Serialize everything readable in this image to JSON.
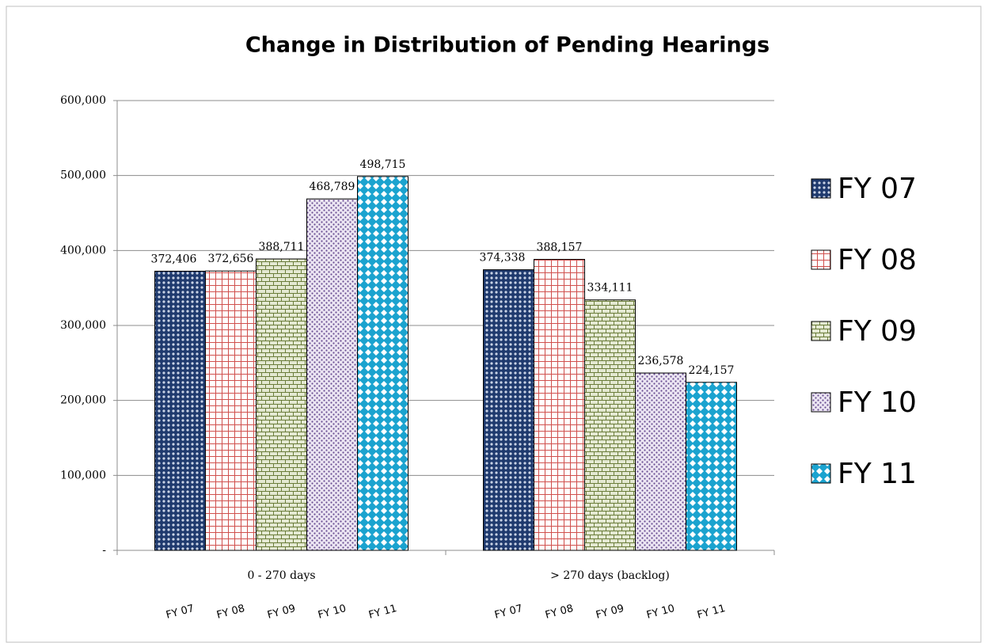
{
  "chart_data": {
    "type": "bar",
    "title": "Change in Distribution of Pending Hearings",
    "categories": [
      "0 - 270 days",
      "> 270 days (backlog)"
    ],
    "bar_labels": [
      "FY 07",
      "FY 08",
      "FY 09",
      "FY 10",
      "FY 11"
    ],
    "series": [
      {
        "name": "FY 07",
        "color": "#1f3a6e",
        "values": [
          372406,
          374338
        ],
        "value_labels": [
          "372,406",
          "374,338"
        ]
      },
      {
        "name": "FY 08",
        "color": "#d0504d",
        "values": [
          372656,
          388157
        ],
        "value_labels": [
          "372,656",
          "388,157"
        ]
      },
      {
        "name": "FY 09",
        "color": "#6b7d3a",
        "values": [
          388711,
          334111
        ],
        "value_labels": [
          "388,711",
          "334,111"
        ]
      },
      {
        "name": "FY 10",
        "color": "#6a4e92",
        "values": [
          468789,
          236578
        ],
        "value_labels": [
          "468,789",
          "236,578"
        ]
      },
      {
        "name": "FY 11",
        "color": "#1ba3cf",
        "values": [
          498715,
          224157
        ],
        "value_labels": [
          "498,715",
          "224,157"
        ]
      }
    ],
    "ylim": [
      0,
      600000
    ],
    "yticks": [
      {
        "value": 0,
        "label": "-"
      },
      {
        "value": 100000,
        "label": "100,000"
      },
      {
        "value": 200000,
        "label": "200,000"
      },
      {
        "value": 300000,
        "label": "300,000"
      },
      {
        "value": 400000,
        "label": "400,000"
      },
      {
        "value": 500000,
        "label": "500,000"
      },
      {
        "value": 600000,
        "label": "600,000"
      }
    ],
    "grid": true,
    "legend": "right"
  }
}
